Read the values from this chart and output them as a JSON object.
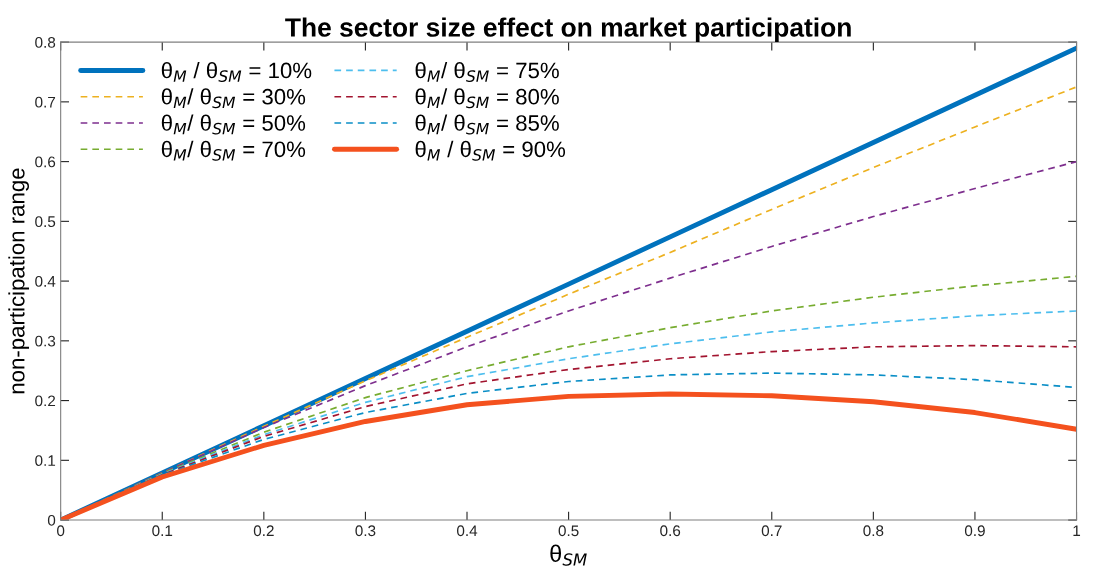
{
  "chart_data": {
    "type": "line",
    "title": "The sector size effect on market participation",
    "xlabel": "θ$_{SM}$",
    "ylabel": "non-participation range",
    "x": [
      0,
      0.1,
      0.2,
      0.3,
      0.4,
      0.5,
      0.6,
      0.7,
      0.8,
      0.9,
      1.0
    ],
    "xlim": [
      0,
      1
    ],
    "xticks": [
      0,
      0.1,
      0.2,
      0.3,
      0.4,
      0.5,
      0.6,
      0.7,
      0.8,
      0.9,
      1
    ],
    "ylim": [
      0,
      0.8
    ],
    "yticks": [
      0,
      0.1,
      0.2,
      0.3,
      0.4,
      0.5,
      0.6,
      0.7,
      0.8
    ],
    "grid": false,
    "legend": "top left",
    "marker": "none",
    "series": [
      {
        "name": "θ$_{M}$ / θ$_{SM}$ = 10%",
        "color": "#0072bd",
        "line_style": "solid",
        "values": [
          0,
          0.079,
          0.158,
          0.237,
          0.316,
          0.395,
          0.474,
          0.553,
          0.632,
          0.711,
          0.79
        ]
      },
      {
        "name": "θ$_{M}$/ θ$_{SM}$ = 30%",
        "color": "#edb120",
        "line_style": "dashed",
        "values": [
          0,
          0.079,
          0.157,
          0.233,
          0.306,
          0.378,
          0.448,
          0.52,
          0.59,
          0.658,
          0.725
        ]
      },
      {
        "name": "θ$_{M}$/ θ$_{SM}$ = 50%",
        "color": "#7e2f8e",
        "line_style": "dashed",
        "values": [
          0,
          0.079,
          0.155,
          0.225,
          0.29,
          0.35,
          0.405,
          0.458,
          0.508,
          0.555,
          0.6
        ]
      },
      {
        "name": "θ$_{M}$/ θ$_{SM}$ = 70%",
        "color": "#77ac30",
        "line_style": "dashed",
        "values": [
          0,
          0.078,
          0.147,
          0.205,
          0.25,
          0.29,
          0.322,
          0.35,
          0.373,
          0.392,
          0.408
        ]
      },
      {
        "name": "θ$_{M}$/ θ$_{SM}$ = 75%",
        "color": "#4dbeee",
        "line_style": "dashed",
        "values": [
          0,
          0.077,
          0.143,
          0.197,
          0.24,
          0.27,
          0.295,
          0.315,
          0.33,
          0.342,
          0.35
        ]
      },
      {
        "name": "θ$_{M}$/ θ$_{SM}$ = 80%",
        "color": "#a2142f",
        "line_style": "dashed",
        "values": [
          0,
          0.076,
          0.14,
          0.19,
          0.228,
          0.252,
          0.27,
          0.282,
          0.29,
          0.292,
          0.29
        ]
      },
      {
        "name": "θ$_{M}$/ θ$_{SM}$ = 85%",
        "color": "#0a8ec6",
        "line_style": "dashed",
        "values": [
          0,
          0.075,
          0.135,
          0.18,
          0.212,
          0.232,
          0.243,
          0.246,
          0.243,
          0.235,
          0.222
        ]
      },
      {
        "name": "θ$_{M}$ / θ$_{SM}$ = 90%",
        "color": "#f4511e",
        "line_style": "solid",
        "values": [
          0,
          0.072,
          0.125,
          0.165,
          0.193,
          0.207,
          0.211,
          0.208,
          0.198,
          0.18,
          0.152
        ]
      }
    ]
  }
}
